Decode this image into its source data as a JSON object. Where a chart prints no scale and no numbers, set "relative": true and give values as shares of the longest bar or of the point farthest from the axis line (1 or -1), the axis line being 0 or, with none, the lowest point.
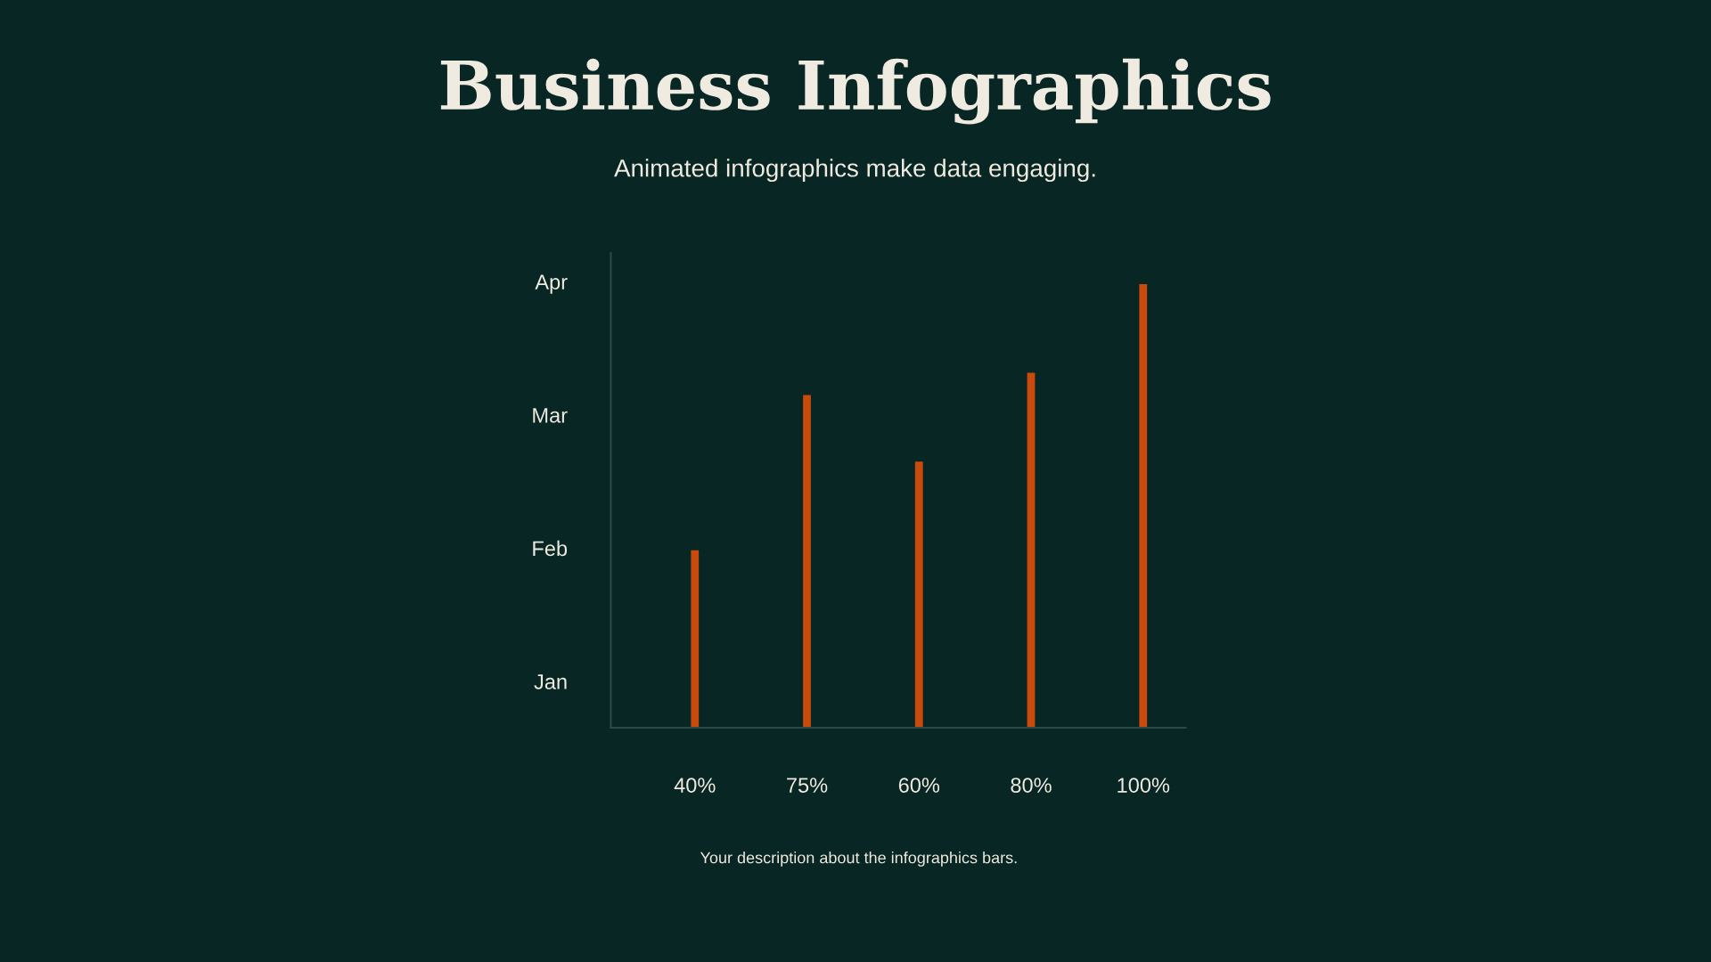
{
  "chart_data": {
    "type": "bar",
    "title": "Business Infographics",
    "subtitle": "Animated infographics make data engaging.",
    "categories": [
      "40%",
      "75%",
      "60%",
      "80%",
      "100%"
    ],
    "values": [
      0.4,
      0.75,
      0.6,
      0.8,
      1
    ],
    "color": "#c94a0c",
    "relative": true,
    "grid": false,
    "legend": false,
    "annotations": [
      "Apr",
      "Mar",
      "Feb",
      "Jan",
      "Your description about the infographics bars."
    ]
  }
}
